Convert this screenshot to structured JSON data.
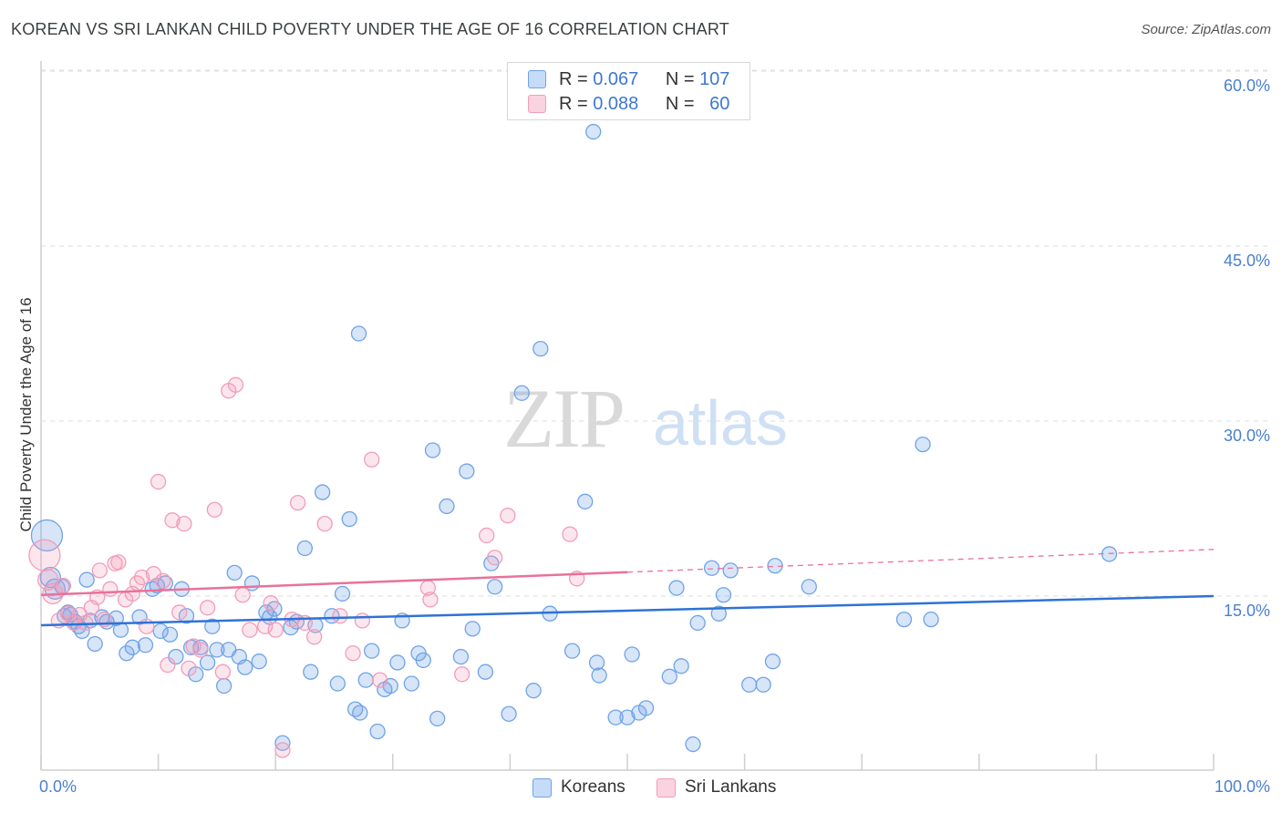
{
  "title": "KOREAN VS SRI LANKAN CHILD POVERTY UNDER THE AGE OF 16 CORRELATION CHART",
  "source": "Source: ZipAtlas.com",
  "legend": {
    "rows": [
      {
        "r_label": "R =",
        "r_value": "0.067",
        "n_label": "N =",
        "n_value": "107"
      },
      {
        "r_label": "R =",
        "r_value": "0.088",
        "n_label": "N =",
        "n_value": "60"
      }
    ]
  },
  "bottom_legend": [
    "Koreans",
    "Sri Lankans"
  ],
  "watermark": {
    "zip": "ZIP",
    "atlas": "atlas"
  },
  "chart_data": {
    "type": "scatter",
    "ylabel": "Child Poverty Under the Age of 16",
    "xlabel": "",
    "x_tick_labels": [
      "0.0%",
      "100.0%"
    ],
    "y_tick_labels": [
      "15.0%",
      "30.0%",
      "45.0%",
      "60.0%"
    ],
    "y_ticks": [
      15,
      30,
      45,
      60
    ],
    "xlim": [
      0,
      100
    ],
    "ylim": [
      0,
      62
    ],
    "grid": "horizontal dashed",
    "colors": {
      "koreans": "#6fa3e6",
      "sri_lankans": "#f29cb8",
      "korean_line": "#2f72d6",
      "sri_lankan_line": "#e8729a"
    },
    "series": [
      {
        "name": "Koreans",
        "trend": {
          "x": [
            0,
            100
          ],
          "y": [
            12.5,
            15.0
          ],
          "solid_until": 100
        },
        "points": [
          [
            0.5,
            20.2
          ],
          [
            0.8,
            16.6
          ],
          [
            1.2,
            15.6
          ],
          [
            1.8,
            15.8
          ],
          [
            2.0,
            13.3
          ],
          [
            2.3,
            13.6
          ],
          [
            2.5,
            13.4
          ],
          [
            2.9,
            12.8
          ],
          [
            3.2,
            12.4
          ],
          [
            3.5,
            12.0
          ],
          [
            3.9,
            16.4
          ],
          [
            4.2,
            12.9
          ],
          [
            4.6,
            10.9
          ],
          [
            5.2,
            13.2
          ],
          [
            5.6,
            12.8
          ],
          [
            6.4,
            13.1
          ],
          [
            6.8,
            12.1
          ],
          [
            7.3,
            10.1
          ],
          [
            7.8,
            10.6
          ],
          [
            8.4,
            13.2
          ],
          [
            8.9,
            10.8
          ],
          [
            9.5,
            15.6
          ],
          [
            9.9,
            15.9
          ],
          [
            10.2,
            12.0
          ],
          [
            10.6,
            16.1
          ],
          [
            11.0,
            11.7
          ],
          [
            11.5,
            9.8
          ],
          [
            12.0,
            15.6
          ],
          [
            12.4,
            13.3
          ],
          [
            12.8,
            10.6
          ],
          [
            13.2,
            8.3
          ],
          [
            13.6,
            10.6
          ],
          [
            14.2,
            9.3
          ],
          [
            14.6,
            12.4
          ],
          [
            15.0,
            10.4
          ],
          [
            15.6,
            7.3
          ],
          [
            16.0,
            10.4
          ],
          [
            16.5,
            17.0
          ],
          [
            16.9,
            9.8
          ],
          [
            17.4,
            8.9
          ],
          [
            18.0,
            16.1
          ],
          [
            18.6,
            9.4
          ],
          [
            19.2,
            13.6
          ],
          [
            19.5,
            13.2
          ],
          [
            19.9,
            13.9
          ],
          [
            20.6,
            2.4
          ],
          [
            21.3,
            12.3
          ],
          [
            21.8,
            12.8
          ],
          [
            22.5,
            19.1
          ],
          [
            23.0,
            8.5
          ],
          [
            23.4,
            12.5
          ],
          [
            24.0,
            23.9
          ],
          [
            24.8,
            13.3
          ],
          [
            25.3,
            7.5
          ],
          [
            25.7,
            15.2
          ],
          [
            26.3,
            21.6
          ],
          [
            26.8,
            5.3
          ],
          [
            27.2,
            5.0
          ],
          [
            27.7,
            7.8
          ],
          [
            28.2,
            10.3
          ],
          [
            28.7,
            3.4
          ],
          [
            29.3,
            7.0
          ],
          [
            29.8,
            7.3
          ],
          [
            30.4,
            9.3
          ],
          [
            30.8,
            12.9
          ],
          [
            31.6,
            7.5
          ],
          [
            32.2,
            10.1
          ],
          [
            32.6,
            9.5
          ],
          [
            33.4,
            27.5
          ],
          [
            33.8,
            4.5
          ],
          [
            34.6,
            22.7
          ],
          [
            35.8,
            9.8
          ],
          [
            36.3,
            25.7
          ],
          [
            36.8,
            12.2
          ],
          [
            37.9,
            8.5
          ],
          [
            38.4,
            17.8
          ],
          [
            38.7,
            15.8
          ],
          [
            39.9,
            4.9
          ],
          [
            41.0,
            32.4
          ],
          [
            42.0,
            6.9
          ],
          [
            42.6,
            36.2
          ],
          [
            43.4,
            13.5
          ],
          [
            45.3,
            10.3
          ],
          [
            46.4,
            23.1
          ],
          [
            47.1,
            54.8
          ],
          [
            47.4,
            9.3
          ],
          [
            47.6,
            8.2
          ],
          [
            49.0,
            4.6
          ],
          [
            50.0,
            4.6
          ],
          [
            50.4,
            10.0
          ],
          [
            51.0,
            5.0
          ],
          [
            51.6,
            5.4
          ],
          [
            53.6,
            8.1
          ],
          [
            54.2,
            15.7
          ],
          [
            54.6,
            9.0
          ],
          [
            55.6,
            2.3
          ],
          [
            56.0,
            12.7
          ],
          [
            57.2,
            17.4
          ],
          [
            57.8,
            13.5
          ],
          [
            58.2,
            15.1
          ],
          [
            58.8,
            17.2
          ],
          [
            60.4,
            7.4
          ],
          [
            61.6,
            7.4
          ],
          [
            62.4,
            9.4
          ],
          [
            62.6,
            17.6
          ],
          [
            65.5,
            15.8
          ],
          [
            75.2,
            28.0
          ],
          [
            73.6,
            13.0
          ],
          [
            75.9,
            13.0
          ],
          [
            91.1,
            18.6
          ],
          [
            27.1,
            37.5
          ]
        ]
      },
      {
        "name": "Sri Lankans",
        "trend": {
          "x": [
            0,
            100
          ],
          "y": [
            15.1,
            19.0
          ],
          "solid_until": 50
        },
        "points": [
          [
            0.3,
            18.5
          ],
          [
            0.6,
            16.4
          ],
          [
            1.0,
            15.2
          ],
          [
            1.5,
            12.9
          ],
          [
            1.9,
            15.9
          ],
          [
            2.3,
            13.5
          ],
          [
            2.8,
            12.7
          ],
          [
            3.3,
            13.4
          ],
          [
            3.8,
            12.7
          ],
          [
            4.3,
            14.0
          ],
          [
            4.8,
            14.9
          ],
          [
            5.0,
            17.2
          ],
          [
            5.4,
            13.0
          ],
          [
            5.9,
            15.6
          ],
          [
            6.3,
            17.8
          ],
          [
            6.6,
            17.9
          ],
          [
            7.2,
            14.7
          ],
          [
            7.8,
            15.2
          ],
          [
            8.2,
            16.1
          ],
          [
            8.6,
            16.6
          ],
          [
            9.0,
            12.4
          ],
          [
            9.6,
            16.9
          ],
          [
            10.0,
            24.8
          ],
          [
            10.4,
            16.3
          ],
          [
            10.8,
            9.1
          ],
          [
            11.2,
            21.5
          ],
          [
            11.8,
            13.6
          ],
          [
            12.2,
            21.2
          ],
          [
            12.6,
            8.8
          ],
          [
            13.0,
            10.7
          ],
          [
            13.6,
            10.4
          ],
          [
            14.2,
            14.0
          ],
          [
            14.8,
            22.4
          ],
          [
            15.5,
            8.5
          ],
          [
            16.0,
            32.6
          ],
          [
            16.6,
            33.1
          ],
          [
            17.2,
            15.1
          ],
          [
            17.8,
            12.1
          ],
          [
            19.1,
            12.4
          ],
          [
            19.6,
            14.4
          ],
          [
            20.0,
            12.1
          ],
          [
            20.6,
            1.8
          ],
          [
            21.4,
            13.0
          ],
          [
            21.9,
            23.0
          ],
          [
            22.5,
            12.7
          ],
          [
            23.3,
            11.5
          ],
          [
            24.2,
            21.2
          ],
          [
            25.5,
            13.3
          ],
          [
            26.6,
            10.1
          ],
          [
            27.4,
            12.9
          ],
          [
            28.2,
            26.7
          ],
          [
            28.9,
            7.8
          ],
          [
            33.0,
            15.7
          ],
          [
            33.2,
            14.7
          ],
          [
            35.9,
            8.3
          ],
          [
            38.0,
            20.2
          ],
          [
            38.7,
            18.3
          ],
          [
            39.8,
            21.9
          ],
          [
            45.1,
            20.3
          ],
          [
            45.7,
            16.5
          ]
        ]
      }
    ]
  }
}
